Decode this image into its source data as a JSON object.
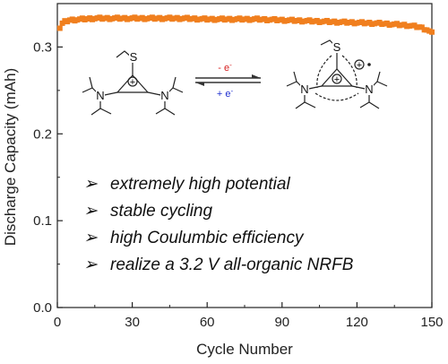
{
  "chart_data": {
    "type": "scatter",
    "xlabel": "Cycle Number",
    "ylabel": "Discharge Capacity (mAh)",
    "xlim": [
      0,
      150
    ],
    "ylim": [
      0.0,
      0.35
    ],
    "x_ticks": [
      "0",
      "30",
      "60",
      "90",
      "120",
      "150"
    ],
    "y_ticks": [
      "0.0",
      "0.1",
      "0.2",
      "0.3"
    ],
    "grid": false,
    "series": [
      {
        "color": "#f07f1e",
        "marker": "square",
        "points_x_range": [
          1,
          150
        ],
        "values": [
          [
            1,
            0.322
          ],
          [
            2,
            0.327
          ],
          [
            3,
            0.329
          ],
          [
            5,
            0.331
          ],
          [
            10,
            0.332
          ],
          [
            15,
            0.333
          ],
          [
            20,
            0.333
          ],
          [
            30,
            0.333
          ],
          [
            40,
            0.333
          ],
          [
            50,
            0.333
          ],
          [
            60,
            0.332
          ],
          [
            70,
            0.332
          ],
          [
            80,
            0.332
          ],
          [
            90,
            0.331
          ],
          [
            100,
            0.33
          ],
          [
            110,
            0.329
          ],
          [
            120,
            0.328
          ],
          [
            130,
            0.327
          ],
          [
            140,
            0.325
          ],
          [
            145,
            0.323
          ],
          [
            148,
            0.32
          ],
          [
            150,
            0.316
          ]
        ]
      }
    ],
    "annotations": {
      "reaction": {
        "oxidation": "- e",
        "oxidation_superscript": "-",
        "reduction": "+ e",
        "reduction_superscript": "-",
        "oxidation_color": "#d62020",
        "reduction_color": "#2030d0"
      },
      "chem_labels": {
        "sulfur": "S",
        "nitrogen": "N",
        "charge": "+"
      },
      "bullets": [
        "extremely high potential",
        "stable cycling",
        "high Coulumbic efficiency",
        "realize a 3.2 V all-organic NRFB"
      ],
      "bullet_glyph": "➢"
    }
  }
}
